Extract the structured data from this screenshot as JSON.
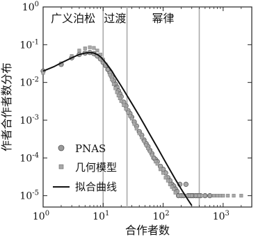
{
  "chart_data": {
    "type": "scatter",
    "xlabel": "合作者数",
    "ylabel": "作者合作者数分布",
    "xscale": "log",
    "yscale": "log",
    "xlim": [
      1,
      3000
    ],
    "ylim": [
      5e-06,
      1
    ],
    "x_ticks": [
      {
        "value": 1,
        "base": "10",
        "exp": "0"
      },
      {
        "value": 10,
        "base": "10",
        "exp": "1"
      },
      {
        "value": 100,
        "base": "10",
        "exp": "2"
      },
      {
        "value": 1000,
        "base": "10",
        "exp": "3"
      }
    ],
    "y_ticks": [
      {
        "value": 1,
        "base": "10",
        "exp": "0"
      },
      {
        "value": 0.1,
        "base": "10",
        "exp": "-1"
      },
      {
        "value": 0.01,
        "base": "10",
        "exp": "-2"
      },
      {
        "value": 0.001,
        "base": "10",
        "exp": "-3"
      },
      {
        "value": 0.0001,
        "base": "10",
        "exp": "-4"
      },
      {
        "value": 1e-05,
        "base": "10",
        "exp": "-5"
      }
    ],
    "regions": [
      {
        "label": "广义泊松",
        "x_end": 10
      },
      {
        "label": "过渡",
        "x_end": 25
      },
      {
        "label": "幂律",
        "x_end": 400
      }
    ],
    "legend_position": "bottom-left",
    "series": [
      {
        "name": "PNAS",
        "marker": "circle",
        "color": "#9a9a9a",
        "x": [
          1,
          2,
          3,
          4,
          5,
          6,
          7,
          8,
          9,
          10,
          11,
          12,
          13,
          14,
          15,
          16,
          17,
          18,
          19,
          20,
          22,
          24,
          26,
          28,
          30,
          33,
          36,
          40,
          44,
          48,
          52,
          56,
          60,
          65,
          70,
          75,
          80,
          90,
          100,
          110,
          120,
          130,
          140,
          150,
          160,
          170,
          180,
          190,
          200,
          220,
          240,
          260,
          280,
          300,
          320,
          350,
          380,
          420,
          500,
          600
        ],
        "y": [
          0.02,
          0.03,
          0.045,
          0.055,
          0.06,
          0.062,
          0.058,
          0.05,
          0.042,
          0.034,
          0.028,
          0.022,
          0.018,
          0.014,
          0.011,
          0.009,
          0.0075,
          0.006,
          0.005,
          0.0042,
          0.003,
          0.0024,
          0.0018,
          0.0015,
          0.0012,
          0.0009,
          0.0007,
          0.0005,
          0.0004,
          0.0003,
          0.00024,
          0.0002,
          0.00016,
          0.00013,
          0.0001,
          9e-05,
          8e-05,
          6e-05,
          5e-05,
          4e-05,
          3e-05,
          2.5e-05,
          2e-05,
          1.8e-05,
          1.5e-05,
          1.3e-05,
          1e-05,
          2e-05,
          1e-05,
          1e-05,
          2e-05,
          1e-05,
          1e-05,
          1e-05,
          1e-05,
          1e-05,
          1e-05,
          1e-05,
          1e-05,
          1e-05
        ]
      },
      {
        "name": "几何模型",
        "marker": "square",
        "color": "#a8a8a8",
        "x": [
          1,
          2,
          3,
          4,
          5,
          6,
          7,
          8,
          9,
          10,
          11,
          12,
          13,
          14,
          15,
          16,
          17,
          18,
          19,
          20,
          22,
          24,
          26,
          28,
          30,
          33,
          36,
          40,
          44,
          48,
          52,
          56,
          60,
          65,
          70,
          75,
          80,
          90,
          100,
          110,
          120,
          130,
          140,
          150,
          160,
          180,
          200,
          220,
          250,
          280,
          300,
          350,
          400,
          450,
          500,
          600,
          700,
          800,
          900,
          1000,
          1200,
          1500,
          2000
        ],
        "y": [
          0.018,
          0.032,
          0.05,
          0.07,
          0.08,
          0.085,
          0.082,
          0.07,
          0.055,
          0.04,
          0.03,
          0.022,
          0.016,
          0.012,
          0.009,
          0.007,
          0.0055,
          0.0045,
          0.0038,
          0.0032,
          0.0025,
          0.002,
          0.0016,
          0.0013,
          0.0011,
          0.0008,
          0.0006,
          0.00045,
          0.00035,
          0.00028,
          0.00022,
          0.00018,
          0.00015,
          0.00012,
          0.0001,
          8e-05,
          7e-05,
          5e-05,
          4e-05,
          3e-05,
          2.5e-05,
          2e-05,
          1.7e-05,
          1.5e-05,
          1.2e-05,
          1e-05,
          1e-05,
          1e-05,
          1e-05,
          1e-05,
          1e-05,
          1e-05,
          1e-05,
          1e-05,
          1e-05,
          1e-05,
          1e-05,
          1e-05,
          1e-05,
          1e-05,
          1e-05,
          1e-05,
          1e-05
        ]
      },
      {
        "name": "拟合曲线",
        "marker": "line",
        "color": "#111111",
        "x": [
          1,
          1.5,
          2,
          3,
          4,
          5,
          6,
          7,
          8,
          9,
          10,
          12,
          14,
          16,
          18,
          20,
          25,
          30,
          40,
          50,
          60,
          80,
          100,
          130,
          160,
          200,
          250,
          300
        ],
        "y": [
          0.02,
          0.026,
          0.033,
          0.045,
          0.055,
          0.06,
          0.062,
          0.06,
          0.055,
          0.048,
          0.04,
          0.028,
          0.02,
          0.014,
          0.0105,
          0.008,
          0.0045,
          0.0028,
          0.0013,
          0.0007,
          0.00042,
          0.00019,
          0.0001,
          4.8e-05,
          2.7e-05,
          1.5e-05,
          8.5e-06,
          5.5e-06
        ]
      }
    ]
  }
}
